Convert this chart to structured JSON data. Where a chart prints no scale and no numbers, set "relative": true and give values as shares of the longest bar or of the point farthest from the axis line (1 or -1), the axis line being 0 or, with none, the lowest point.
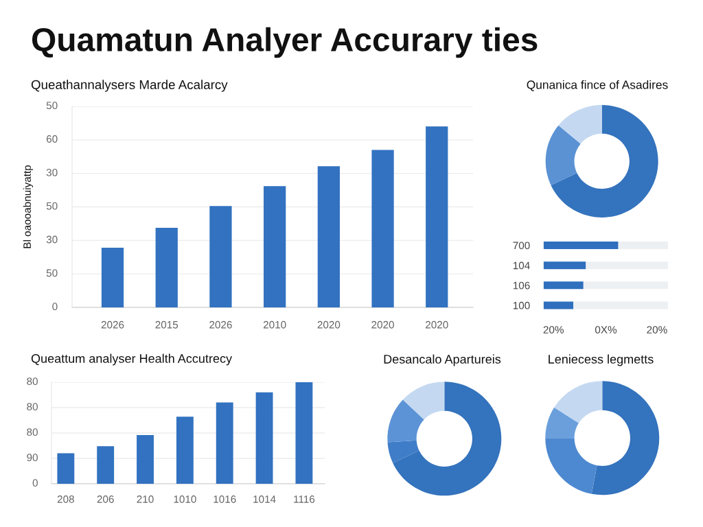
{
  "chart_data": [
    {
      "type": "other",
      "title": "Quamatun Analyer Accurary ties"
    },
    {
      "type": "bar",
      "relative": true,
      "title": "Queathannalysers Marde Acalarcy",
      "ylabel": "Bl oaooabnuiyattp",
      "categories": [
        "2026",
        "2015",
        "2026",
        "2010",
        "2020",
        "2020",
        "2020"
      ],
      "values": [
        0.33,
        0.44,
        0.56,
        0.67,
        0.78,
        0.87,
        1
      ],
      "color": "#3272c0",
      "annotations": [
        "50",
        "60",
        "30",
        "50",
        "30",
        "50",
        "0"
      ],
      "grid": "y"
    },
    {
      "type": "donut",
      "title": "Qunanica fince of Asadires",
      "categories": [
        null,
        null,
        null
      ],
      "values": [
        68,
        18,
        14
      ],
      "colors": [
        "#3473bd",
        "#5a92d4",
        "#c4d9f1"
      ]
    },
    {
      "type": "bar",
      "relative": true,
      "orientation": "horizontal",
      "stacked": true,
      "categories": [
        "700",
        "104",
        "106",
        "100"
      ],
      "series": [
        {
          "color": "#2f6fbd",
          "values": [
            0.6,
            0.34,
            0.32,
            0.24
          ]
        },
        {
          "color": "#edf0f3",
          "values": [
            0.4,
            0.66,
            0.68,
            0.76
          ]
        }
      ],
      "annotations": [
        "20%",
        "0X%",
        "20%"
      ]
    },
    {
      "type": "bar",
      "relative": true,
      "title": "Queattum analyser Health Accutrecy",
      "categories": [
        "208",
        "206",
        "210",
        "1010",
        "1016",
        "1014",
        "1116"
      ],
      "values": [
        0.3,
        0.37,
        0.48,
        0.66,
        0.8,
        0.9,
        1
      ],
      "color": "#3272c0",
      "annotations": [
        "80",
        "80",
        "80",
        "90",
        "0"
      ],
      "grid": "y"
    },
    {
      "type": "donut",
      "title": "Desancalo Apartureis",
      "categories": [
        null,
        null,
        null,
        null
      ],
      "values": [
        68,
        6,
        13,
        13
      ],
      "colors": [
        "#3473bd",
        "#3f7dc8",
        "#5b93d6",
        "#c4d9f1"
      ]
    },
    {
      "type": "donut",
      "title": "Leniecess legmetts",
      "categories": [
        null,
        null,
        null,
        null
      ],
      "values": [
        53,
        22,
        9,
        16
      ],
      "colors": [
        "#3473bd",
        "#4d89d1",
        "#6a9fdc",
        "#c4d9f1"
      ]
    }
  ]
}
